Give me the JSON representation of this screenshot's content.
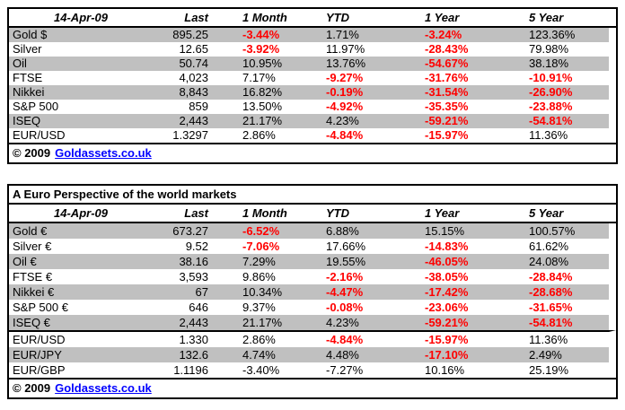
{
  "colors": {
    "negative_value_red": "#FF0000",
    "row_shade_gray": "#C0C0C0",
    "link_blue": "#0000FF",
    "border_black": "#000000"
  },
  "tables": [
    {
      "name": "world-markets-usd",
      "title": null,
      "headers": [
        "14-Apr-09",
        "Last",
        "1 Month",
        "YTD",
        "1 Year",
        "5 Year"
      ],
      "rows": [
        {
          "label": "Gold $",
          "cells": [
            {
              "t": "895.25"
            },
            {
              "t": "-3.44%",
              "red": true
            },
            {
              "t": "1.71%"
            },
            {
              "t": "-3.24%",
              "red": true
            },
            {
              "t": "123.36%"
            }
          ]
        },
        {
          "label": "Silver",
          "cells": [
            {
              "t": "12.65"
            },
            {
              "t": "-3.92%",
              "red": true
            },
            {
              "t": "11.97%"
            },
            {
              "t": "-28.43%",
              "red": true
            },
            {
              "t": "79.98%"
            }
          ]
        },
        {
          "label": "Oil",
          "cells": [
            {
              "t": "50.74"
            },
            {
              "t": "10.95%"
            },
            {
              "t": "13.76%"
            },
            {
              "t": "-54.67%",
              "red": true
            },
            {
              "t": "38.18%"
            }
          ]
        },
        {
          "label": "FTSE",
          "cells": [
            {
              "t": "4,023"
            },
            {
              "t": "7.17%"
            },
            {
              "t": "-9.27%",
              "red": true
            },
            {
              "t": "-31.76%",
              "red": true
            },
            {
              "t": "-10.91%",
              "red": true
            }
          ]
        },
        {
          "label": "Nikkei",
          "cells": [
            {
              "t": "8,843"
            },
            {
              "t": "16.82%"
            },
            {
              "t": "-0.19%",
              "red": true
            },
            {
              "t": "-31.54%",
              "red": true
            },
            {
              "t": "-26.90%",
              "red": true
            }
          ]
        },
        {
          "label": "S&P 500",
          "cells": [
            {
              "t": "859"
            },
            {
              "t": "13.50%"
            },
            {
              "t": "-4.92%",
              "red": true
            },
            {
              "t": "-35.35%",
              "red": true
            },
            {
              "t": "-23.88%",
              "red": true
            }
          ]
        },
        {
          "label": "ISEQ",
          "cells": [
            {
              "t": "2,443"
            },
            {
              "t": "21.17%"
            },
            {
              "t": "4.23%"
            },
            {
              "t": "-59.21%",
              "red": true
            },
            {
              "t": "-54.81%",
              "red": true
            }
          ]
        },
        {
          "label": "EUR/USD",
          "cells": [
            {
              "t": "1.3297"
            },
            {
              "t": "2.86%"
            },
            {
              "t": "-4.84%",
              "red": true
            },
            {
              "t": "-15.97%",
              "red": true
            },
            {
              "t": "11.36%"
            }
          ]
        }
      ],
      "copyright_prefix": "© 2009",
      "copyright_link": "Goldassets.co.uk"
    },
    {
      "name": "world-markets-eur",
      "title": "A Euro Perspective of the world markets",
      "headers": [
        "14-Apr-09",
        "Last",
        "1 Month",
        "YTD",
        "1 Year",
        "5 Year"
      ],
      "rows": [
        {
          "label": "Gold €",
          "cells": [
            {
              "t": "673.27"
            },
            {
              "t": "-6.52%",
              "red": true
            },
            {
              "t": "6.88%"
            },
            {
              "t": "15.15%"
            },
            {
              "t": "100.57%"
            }
          ]
        },
        {
          "label": "Silver €",
          "cells": [
            {
              "t": "9.52"
            },
            {
              "t": "-7.06%",
              "red": true
            },
            {
              "t": "17.66%"
            },
            {
              "t": "-14.83%",
              "red": true
            },
            {
              "t": "61.62%"
            }
          ]
        },
        {
          "label": "Oil €",
          "cells": [
            {
              "t": "38.16"
            },
            {
              "t": "7.29%"
            },
            {
              "t": "19.55%"
            },
            {
              "t": "-46.05%",
              "red": true
            },
            {
              "t": "24.08%"
            }
          ]
        },
        {
          "label": "FTSE €",
          "cells": [
            {
              "t": "3,593"
            },
            {
              "t": "9.86%"
            },
            {
              "t": "-2.16%",
              "red": true
            },
            {
              "t": "-38.05%",
              "red": true
            },
            {
              "t": "-28.84%",
              "red": true
            }
          ]
        },
        {
          "label": "Nikkei €",
          "cells": [
            {
              "t": "67"
            },
            {
              "t": "10.34%"
            },
            {
              "t": "-4.47%",
              "red": true
            },
            {
              "t": "-17.42%",
              "red": true
            },
            {
              "t": "-28.68%",
              "red": true
            }
          ]
        },
        {
          "label": "S&P 500 €",
          "cells": [
            {
              "t": "646"
            },
            {
              "t": "9.37%"
            },
            {
              "t": "-0.08%",
              "red": true
            },
            {
              "t": "-23.06%",
              "red": true
            },
            {
              "t": "-31.65%",
              "red": true
            }
          ]
        },
        {
          "label": "ISEQ €",
          "cells": [
            {
              "t": "2,443"
            },
            {
              "t": "21.17%"
            },
            {
              "t": "4.23%"
            },
            {
              "t": "-59.21%",
              "red": true
            },
            {
              "t": "-54.81%",
              "red": true
            }
          ]
        },
        {
          "label": "EUR/USD",
          "separator_above": true,
          "cells": [
            {
              "t": "1.330"
            },
            {
              "t": "2.86%"
            },
            {
              "t": "-4.84%",
              "red": true
            },
            {
              "t": "-15.97%",
              "red": true
            },
            {
              "t": "11.36%"
            }
          ]
        },
        {
          "label": "EUR/JPY",
          "cells": [
            {
              "t": "132.6"
            },
            {
              "t": "4.74%"
            },
            {
              "t": "4.48%"
            },
            {
              "t": "-17.10%",
              "red": true
            },
            {
              "t": "2.49%"
            }
          ]
        },
        {
          "label": "EUR/GBP",
          "cells": [
            {
              "t": "1.1196"
            },
            {
              "t": "-3.40%"
            },
            {
              "t": "-7.27%"
            },
            {
              "t": "10.16%"
            },
            {
              "t": "25.19%"
            }
          ]
        }
      ],
      "copyright_prefix": "© 2009",
      "copyright_link": "Goldassets.co.uk"
    }
  ]
}
